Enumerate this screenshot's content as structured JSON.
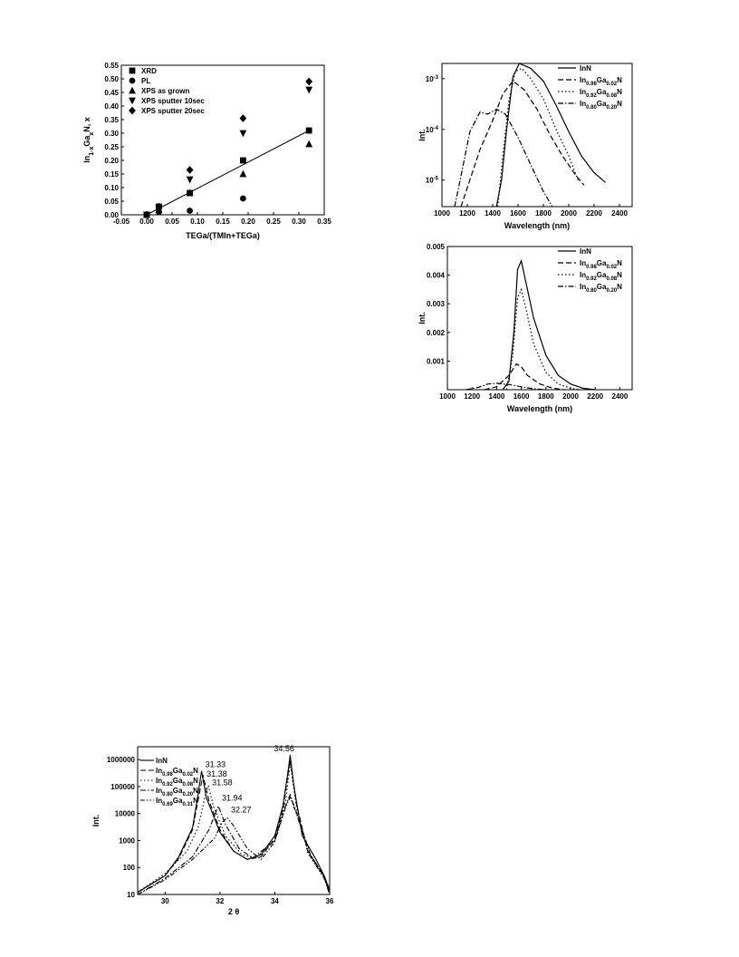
{
  "chart_data": [
    {
      "id": "composition",
      "type": "scatter",
      "xlabel": "TEGa/(TMIn+TEGa)",
      "ylabel": "In1-xGaxN, x",
      "xlim": [
        -0.05,
        0.35
      ],
      "ylim": [
        0.0,
        0.55
      ],
      "xticks": [
        "-0.05",
        "0.00",
        "0.05",
        "0.10",
        "0.15",
        "0.20",
        "0.25",
        "0.30",
        "0.35"
      ],
      "yticks": [
        "0.00",
        "0.05",
        "0.10",
        "0.15",
        "0.20",
        "0.25",
        "0.30",
        "0.35",
        "0.40",
        "0.45",
        "0.50",
        "0.55"
      ],
      "legend_position": "top-left",
      "series": [
        {
          "name": "XRD",
          "marker": "square",
          "x": [
            0.0,
            0.024,
            0.085,
            0.19,
            0.32
          ],
          "y": [
            0.0,
            0.03,
            0.08,
            0.2,
            0.31
          ]
        },
        {
          "name": "PL",
          "marker": "circle",
          "x": [
            0.0,
            0.024,
            0.085,
            0.19,
            0.32
          ],
          "y": [
            0.0,
            0.01,
            0.015,
            0.06,
            0.31
          ]
        },
        {
          "name": "XPS as grown",
          "marker": "triangle-up",
          "x": [
            0.0,
            0.024,
            0.085,
            0.19,
            0.32
          ],
          "y": [
            0.0,
            0.02,
            0.08,
            0.15,
            0.26
          ]
        },
        {
          "name": "XPS sputter 10sec",
          "marker": "triangle-down",
          "x": [
            0.0,
            0.024,
            0.085,
            0.19,
            0.32
          ],
          "y": [
            0.0,
            0.025,
            0.13,
            0.3,
            0.46
          ]
        },
        {
          "name": "XPS sputter 20sec",
          "marker": "diamond",
          "x": [
            0.0,
            0.024,
            0.085,
            0.19,
            0.32
          ],
          "y": [
            0.0,
            0.03,
            0.165,
            0.355,
            0.49
          ]
        }
      ],
      "fit_line": {
        "x": [
          0.0,
          0.32
        ],
        "y": [
          0.0,
          0.31
        ]
      }
    },
    {
      "id": "pl-log",
      "type": "line",
      "xlabel": "Wavelength (nm)",
      "ylabel": "Int.",
      "xlim": [
        1000,
        2500
      ],
      "ylim_log": [
        3e-06,
        0.002
      ],
      "xticks": [
        "1000",
        "1200",
        "1400",
        "1600",
        "1800",
        "2000",
        "2200",
        "2400"
      ],
      "yticks": [
        {
          "label": "10",
          "exp": "-5",
          "value": 1e-05
        },
        {
          "label": "10",
          "exp": "-4",
          "value": 0.0001
        },
        {
          "label": "10",
          "exp": "-3",
          "value": 0.001
        }
      ],
      "legend_position": "top-right",
      "series": [
        {
          "name": "InN",
          "style": "solid",
          "x": [
            1430,
            1470,
            1510,
            1560,
            1610,
            1700,
            1800,
            1900,
            2000,
            2100,
            2200,
            2290
          ],
          "y": [
            2.5e-06,
            1e-05,
            0.0001,
            0.0011,
            0.002,
            0.0016,
            0.0009,
            0.0003,
            9e-05,
            3e-05,
            1.4e-05,
            9e-06
          ]
        },
        {
          "name": "In0.98Ga0.02N",
          "style": "dash",
          "x": [
            1150,
            1220,
            1300,
            1400,
            1480,
            1560,
            1650,
            1750,
            1850,
            1950,
            2050,
            2120
          ],
          "y": [
            2.5e-06,
            1e-05,
            4e-05,
            0.00015,
            0.0005,
            0.0009,
            0.0006,
            0.00025,
            8e-05,
            3e-05,
            1.3e-05,
            8e-06
          ]
        },
        {
          "name": "In0.92Ga0.08N",
          "style": "dot",
          "x": [
            1440,
            1480,
            1530,
            1580,
            1630,
            1700,
            1800,
            1900,
            2000,
            2080
          ],
          "y": [
            2.5e-06,
            3e-05,
            0.0004,
            0.0014,
            0.0016,
            0.001,
            0.0004,
            0.0001,
            3e-05,
            9e-06
          ]
        },
        {
          "name": "In0.80Ga0.20N",
          "style": "dashdot",
          "x": [
            1100,
            1150,
            1220,
            1300,
            1360,
            1430,
            1500,
            1600,
            1700,
            1800,
            1870
          ],
          "y": [
            2.5e-06,
            1.2e-05,
            9e-05,
            0.00022,
            0.0002,
            0.00025,
            0.0002,
            7e-05,
            2e-05,
            6e-06,
            2.8e-06
          ]
        }
      ]
    },
    {
      "id": "pl-linear",
      "type": "line",
      "xlabel": "Wavelength (nm)",
      "ylabel": "Int.",
      "xlim": [
        1000,
        2500
      ],
      "ylim": [
        0,
        0.005
      ],
      "xticks": [
        "1000",
        "1200",
        "1400",
        "1600",
        "1800",
        "2000",
        "2200",
        "2400"
      ],
      "yticks": [
        "0.001",
        "0.002",
        "0.003",
        "0.004",
        "0.005"
      ],
      "legend_position": "top-right",
      "series": [
        {
          "name": "InN",
          "style": "solid",
          "x": [
            1450,
            1500,
            1540,
            1570,
            1600,
            1650,
            1700,
            1800,
            1900,
            2000,
            2100,
            2200
          ],
          "y": [
            0,
            0.0003,
            0.002,
            0.0042,
            0.0045,
            0.0035,
            0.0025,
            0.0012,
            0.0005,
            0.0002,
            5e-05,
            0.0
          ]
        },
        {
          "name": "In0.98Ga0.02N",
          "style": "dash",
          "x": [
            1300,
            1400,
            1500,
            1560,
            1600,
            1650,
            1750,
            1850,
            1950
          ],
          "y": [
            0,
            0.0001,
            0.0005,
            0.0009,
            0.0008,
            0.0005,
            0.0002,
            6e-05,
            0
          ]
        },
        {
          "name": "In0.92Ga0.08N",
          "style": "dot",
          "x": [
            1480,
            1530,
            1570,
            1600,
            1640,
            1700,
            1800,
            1900,
            2000,
            2080
          ],
          "y": [
            0,
            0.0012,
            0.0032,
            0.0035,
            0.0028,
            0.0016,
            0.0006,
            0.0002,
            5e-05,
            0
          ]
        },
        {
          "name": "In0.80Ga0.20N",
          "style": "dashdot",
          "x": [
            1150,
            1250,
            1330,
            1400,
            1500,
            1600,
            1700,
            1800
          ],
          "y": [
            0,
            8e-05,
            0.0002,
            0.00022,
            0.00018,
            0.0001,
            3e-05,
            0
          ]
        }
      ]
    },
    {
      "id": "xrd",
      "type": "line",
      "xlabel": "2 θ",
      "ylabel": "Int.",
      "xlim": [
        29,
        36
      ],
      "ylim_log": [
        10,
        3000000
      ],
      "xticks": [
        "30",
        "32",
        "34",
        "36"
      ],
      "yticks": [
        "10",
        "100",
        "1000",
        "10000",
        "100000",
        "1000000"
      ],
      "legend_position": "top-left",
      "series": [
        {
          "name": "InN",
          "style": "solid",
          "x": [
            29.0,
            30.0,
            30.5,
            31.0,
            31.2,
            31.33,
            31.5,
            32.0,
            32.5,
            33.0,
            33.5,
            34.0,
            34.3,
            34.5,
            34.56,
            34.7,
            35.0,
            35.5,
            35.8,
            36.0
          ],
          "y": [
            12,
            50,
            250,
            3000,
            50000,
            380000,
            40000,
            2000,
            400,
            200,
            300,
            1500,
            20000,
            500000,
            1500000,
            100000,
            1500,
            200,
            50,
            15
          ]
        },
        {
          "name": "In0.98Ga0.02N",
          "style": "dash",
          "x": [
            29.0,
            30.0,
            30.5,
            31.0,
            31.2,
            31.38,
            31.6,
            32.0,
            32.5,
            33.0,
            33.5,
            34.0,
            34.3,
            34.56,
            34.8,
            35.2,
            35.8,
            36.0
          ],
          "y": [
            12,
            50,
            220,
            2500,
            30000,
            270000,
            30000,
            2500,
            400,
            200,
            250,
            1200,
            15000,
            1000000,
            20000,
            400,
            50,
            12
          ]
        },
        {
          "name": "In0.92Ga0.08N",
          "style": "dot",
          "x": [
            29.0,
            30.0,
            30.8,
            31.2,
            31.45,
            31.58,
            31.75,
            32.2,
            32.8,
            33.3,
            34.0,
            34.4,
            34.56,
            34.8,
            35.2,
            35.8,
            36.0
          ],
          "y": [
            12,
            60,
            400,
            3000,
            40000,
            110000,
            20000,
            1500,
            300,
            220,
            1000,
            30000,
            700000,
            15000,
            350,
            45,
            12
          ]
        },
        {
          "name": "In0.80Ga0.20N",
          "style": "dashdot",
          "x": [
            29.0,
            30.0,
            31.0,
            31.6,
            31.94,
            32.2,
            32.7,
            33.2,
            34.0,
            34.4,
            34.56,
            34.8,
            35.3,
            35.8,
            36.0
          ],
          "y": [
            10,
            40,
            250,
            2500,
            19000,
            4000,
            500,
            220,
            1000,
            20000,
            50000,
            10000,
            300,
            45,
            10
          ]
        },
        {
          "name": "In0.69Ga0.31N",
          "style": "dashdotdot",
          "x": [
            29.0,
            30.0,
            31.0,
            31.8,
            32.1,
            32.27,
            32.5,
            33.0,
            33.5,
            34.0,
            34.4,
            34.56,
            34.8,
            35.3,
            35.8,
            36.0
          ],
          "y": [
            10,
            35,
            200,
            1200,
            5000,
            7000,
            3500,
            500,
            200,
            900,
            18000,
            40000,
            9000,
            250,
            40,
            10
          ]
        }
      ],
      "annotations": [
        {
          "text": "31.33",
          "x": 31.33,
          "y": 380000
        },
        {
          "text": "31.38",
          "x": 31.38,
          "y": 270000
        },
        {
          "text": "31.58",
          "x": 31.58,
          "y": 110000
        },
        {
          "text": "31.94",
          "x": 31.94,
          "y": 19000
        },
        {
          "text": "32.27",
          "x": 32.27,
          "y": 7000
        },
        {
          "text": "34.56",
          "x": 34.56,
          "y": 1500000
        }
      ]
    }
  ]
}
